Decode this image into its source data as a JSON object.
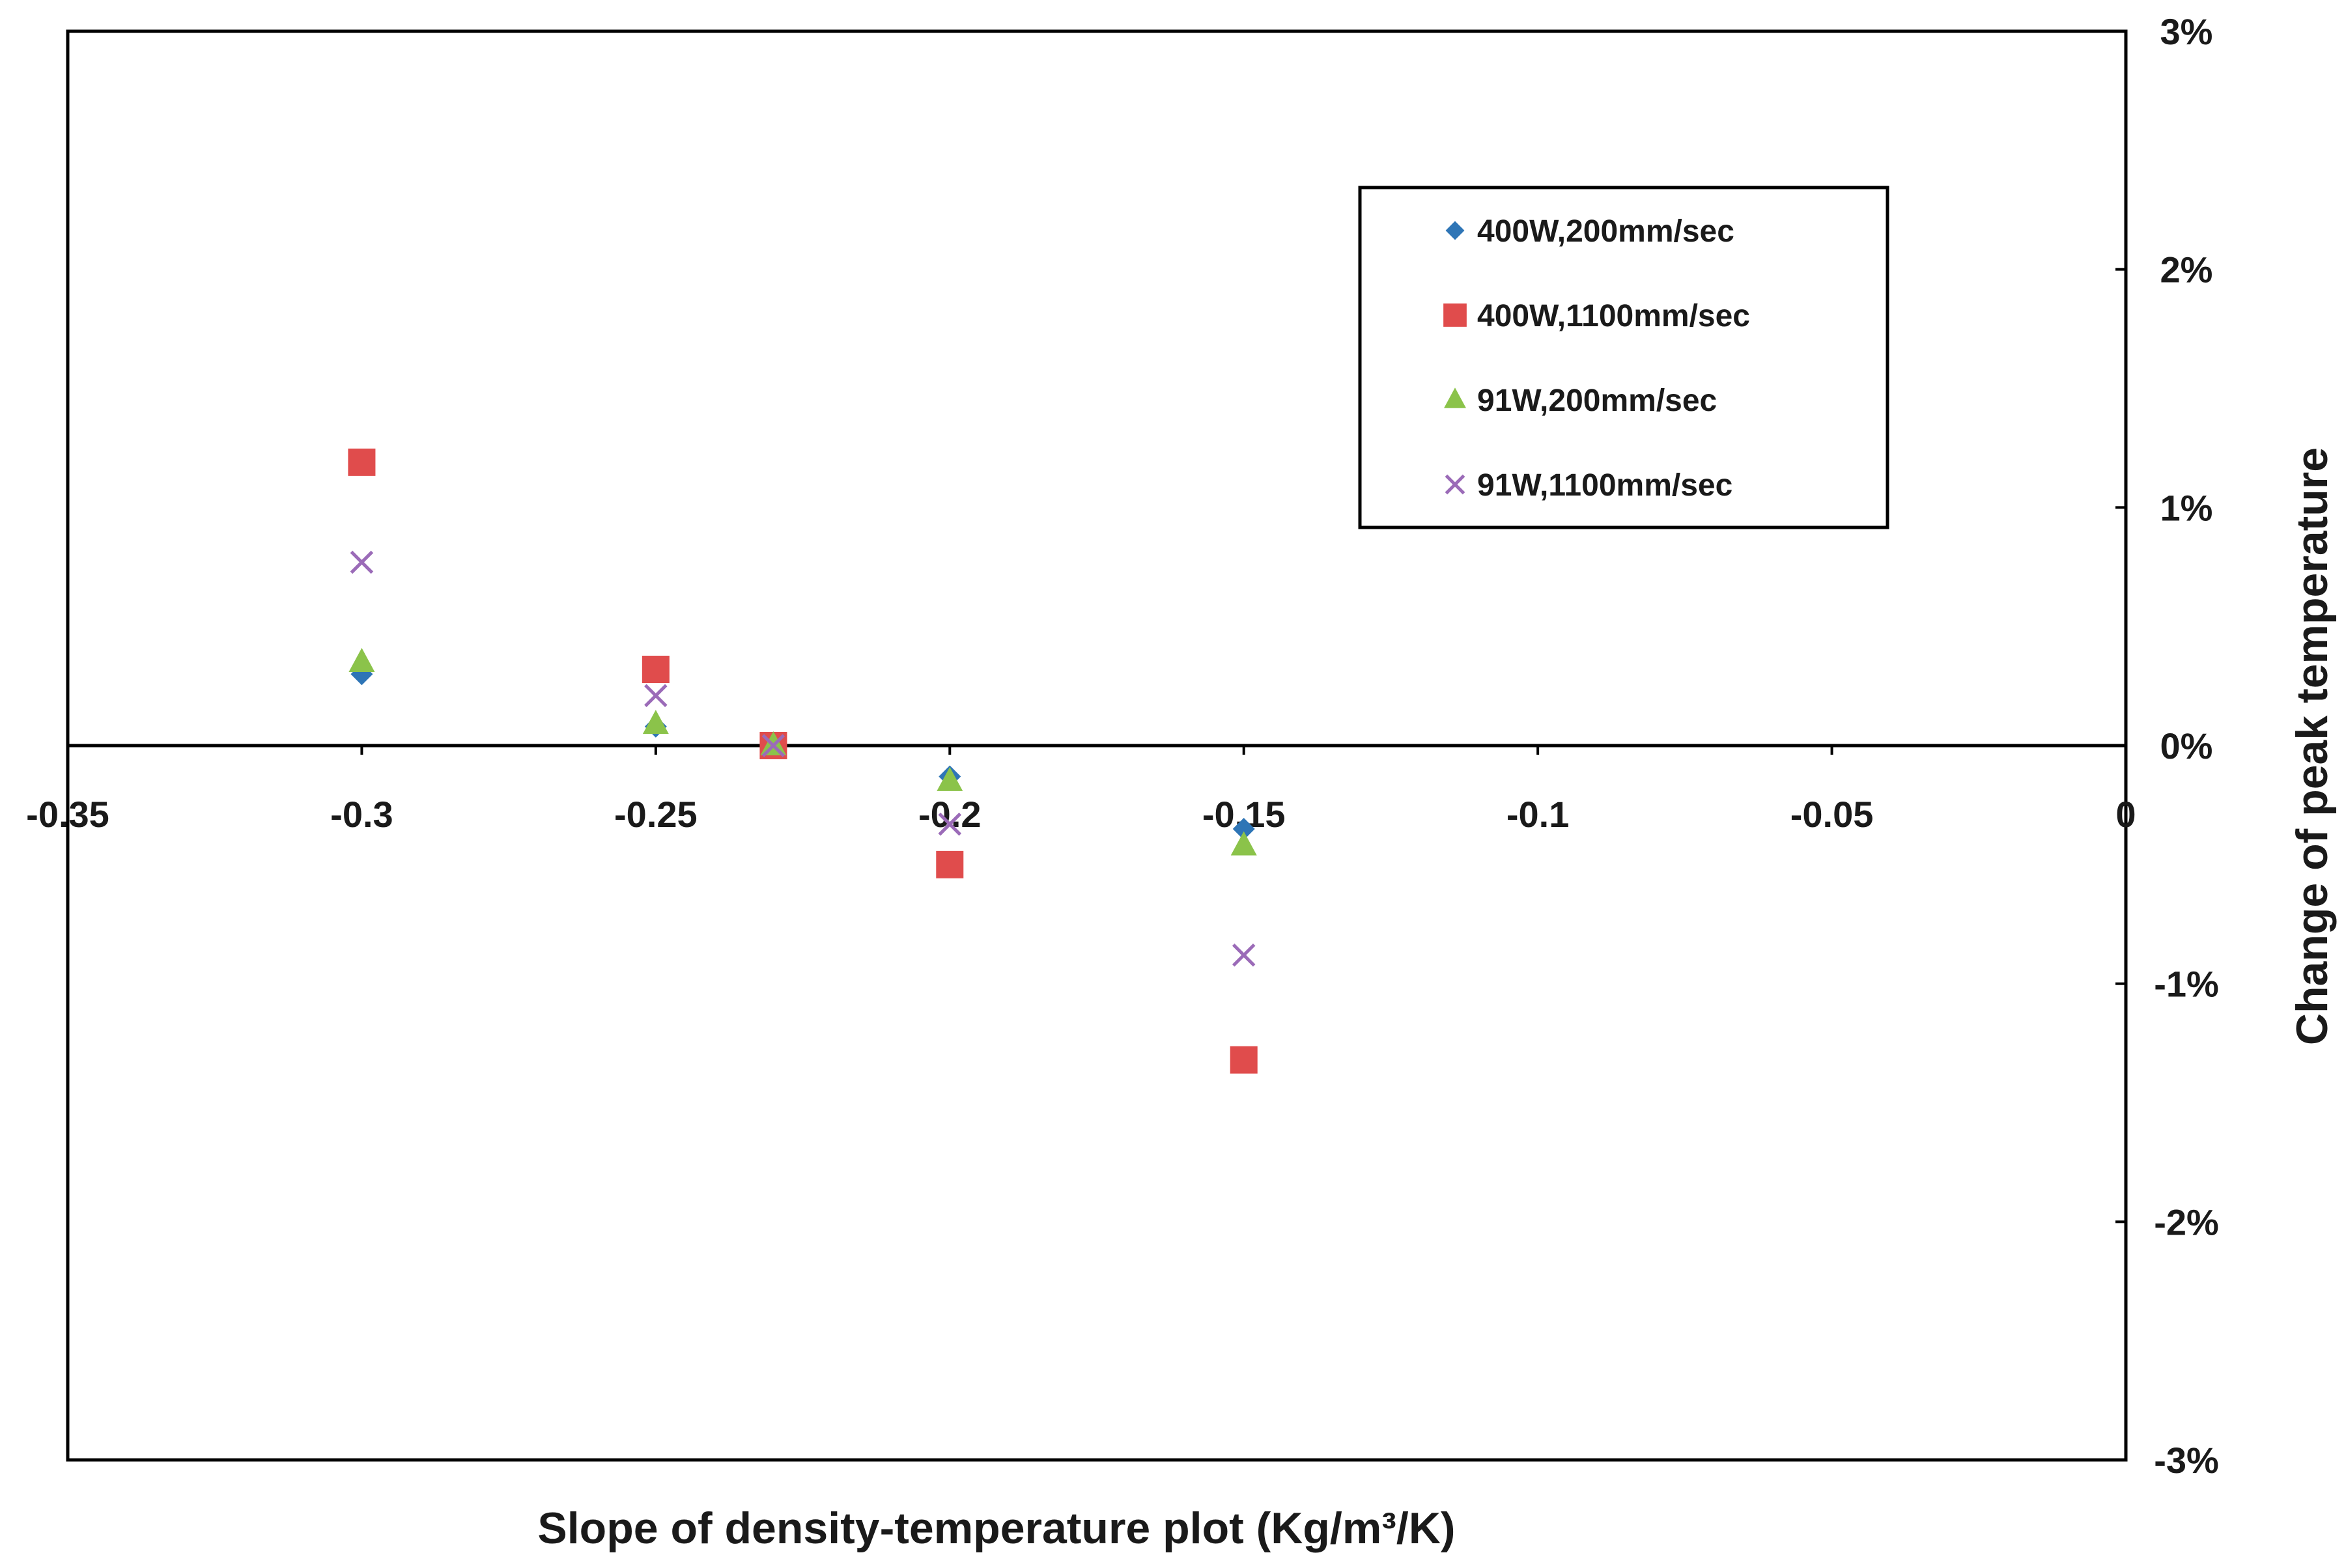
{
  "chart_data": {
    "type": "scatter",
    "title": "",
    "xlabel": "Slope of density-temperature plot (Kg/m³/K)",
    "ylabel": "Change of peak temperature",
    "xlim": [
      -0.35,
      0
    ],
    "ylim": [
      -3,
      3
    ],
    "x_ticks": [
      "-0.35",
      "-0.3",
      "-0.25",
      "-0.2",
      "-0.15",
      "-0.1",
      "-0.05",
      "0"
    ],
    "y_ticks": [
      "3%",
      "2%",
      "1%",
      "0%",
      "-1%",
      "-2%",
      "-3%"
    ],
    "y_tick_values": [
      3,
      2,
      1,
      0,
      -1,
      -2,
      -3
    ],
    "x_tick_values": [
      -0.35,
      -0.3,
      -0.25,
      -0.2,
      -0.15,
      -0.1,
      -0.05,
      0
    ],
    "grid": false,
    "legend_position": "top-right",
    "series": [
      {
        "name": "400W,200mm/sec",
        "marker": "diamond",
        "color": "#2e75b6",
        "x": [
          -0.3,
          -0.25,
          -0.23,
          -0.2,
          -0.15
        ],
        "y": [
          0.3,
          0.08,
          0.0,
          -0.13,
          -0.35
        ]
      },
      {
        "name": "400W,1100mm/sec",
        "marker": "square",
        "color": "#e04c4c",
        "x": [
          -0.3,
          -0.25,
          -0.23,
          -0.2,
          -0.15
        ],
        "y": [
          1.19,
          0.32,
          0.0,
          -0.5,
          -1.32
        ]
      },
      {
        "name": "91W,200mm/sec",
        "marker": "triangle",
        "color": "#8bc34a",
        "x": [
          -0.3,
          -0.25,
          -0.23,
          -0.2,
          -0.15
        ],
        "y": [
          0.35,
          0.09,
          0.0,
          -0.15,
          -0.42
        ]
      },
      {
        "name": "91W,1100mm/sec",
        "marker": "x",
        "color": "#9b6bb8",
        "x": [
          -0.3,
          -0.25,
          -0.23,
          -0.2,
          -0.15
        ],
        "y": [
          0.77,
          0.21,
          0.0,
          -0.33,
          -0.88
        ]
      }
    ]
  }
}
